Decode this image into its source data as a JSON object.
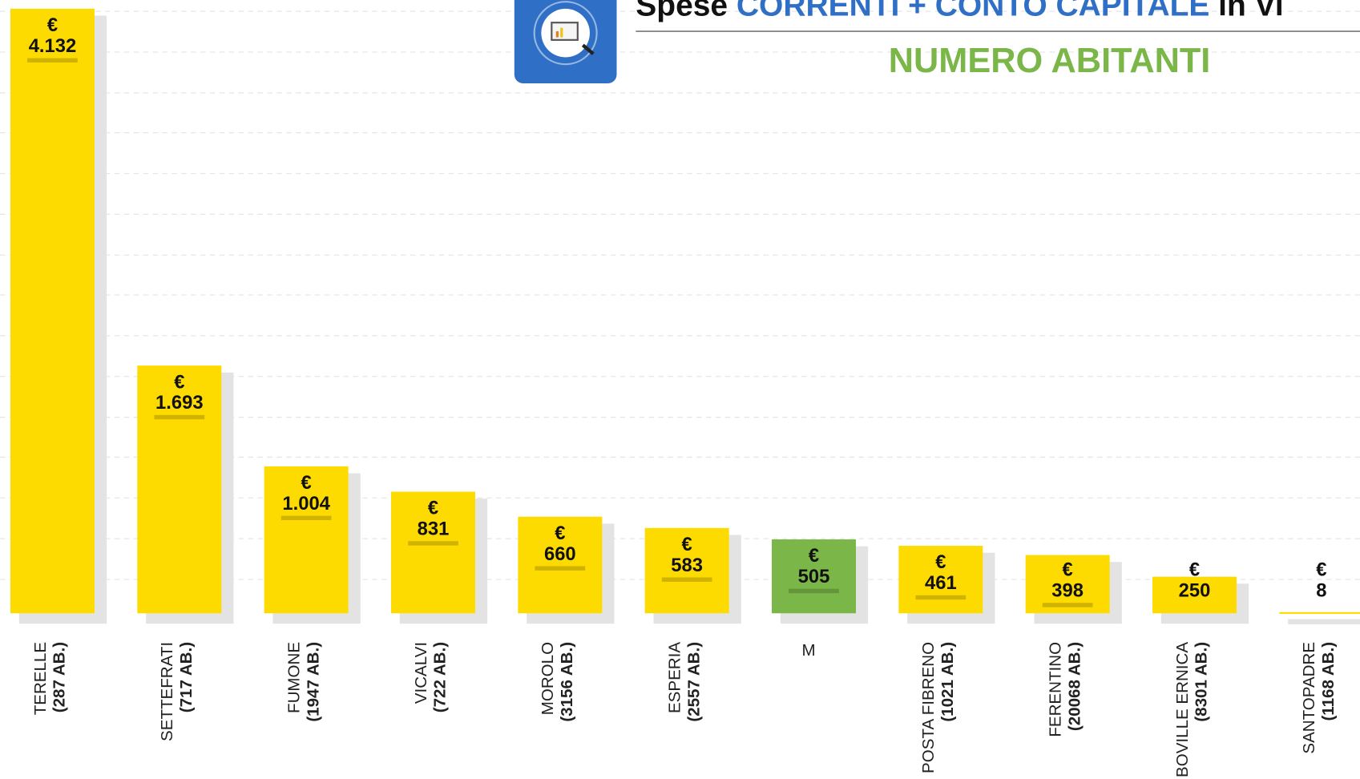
{
  "chart_data": {
    "type": "bar",
    "title_parts": [
      "Spese ",
      "CORRENTI + CONTO CAPITALE",
      " in Vi"
    ],
    "subtitle": "NUMERO ABITANTI",
    "currency": "€",
    "categories": [
      "TERELLE",
      "SETTEFRATI",
      "FUMONE",
      "VICALVI",
      "MOROLO",
      "ESPERIA",
      "M",
      "POSTA FIBRENO",
      "FERENTINO",
      "BOVILLE ERNICA",
      "SANTOPADRE"
    ],
    "category_sublabels": [
      "(287 AB.)",
      "(717 AB.)",
      "(1947 AB.)",
      "(722 AB.)",
      "(3156 AB.)",
      "(2557 AB.)",
      null,
      "(1021 AB.)",
      "(20068 AB.)",
      "(8301 AB.)",
      "(1168 AB.)"
    ],
    "values": [
      4132,
      1693,
      1004,
      831,
      660,
      583,
      505,
      461,
      398,
      250,
      8
    ],
    "value_labels": [
      "4.132",
      "1.693",
      "1.004",
      "831",
      "660",
      "583",
      "505",
      "461",
      "398",
      "250",
      "8"
    ],
    "colors": [
      "#fedb00",
      "#fedb00",
      "#fedb00",
      "#fedb00",
      "#fedb00",
      "#fedb00",
      "#7ab648",
      "#fedb00",
      "#fedb00",
      "#fedb00",
      "#fedb00"
    ],
    "ylim": [
      0,
      4200
    ]
  }
}
